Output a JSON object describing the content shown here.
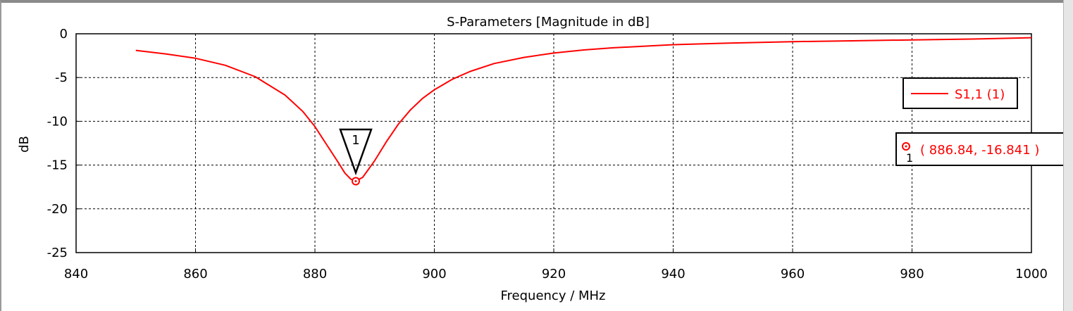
{
  "chart_data": {
    "type": "line",
    "title": "S-Parameters [Magnitude in dB]",
    "xlabel": "Frequency / MHz",
    "ylabel": "dB",
    "xlim": [
      840,
      1000
    ],
    "ylim": [
      -25,
      0
    ],
    "x_ticks": [
      840,
      860,
      880,
      900,
      920,
      940,
      960,
      980,
      1000
    ],
    "y_ticks": [
      0,
      -5,
      -10,
      -15,
      -20,
      -25
    ],
    "x_tick_labels": [
      "840",
      "860",
      "880",
      "900",
      "920",
      "940",
      "960",
      "980",
      "1000"
    ],
    "y_tick_labels": [
      "0",
      "-5",
      "-10",
      "-15",
      "-20",
      "-25"
    ],
    "grid": true,
    "legend_position": "right",
    "series": [
      {
        "name": "S1,1 (1)",
        "color": "#ff0000",
        "x": [
          850,
          855,
          860,
          865,
          870,
          875,
          878,
          880,
          882,
          884,
          885,
          886,
          886.84,
          888,
          890,
          892,
          894,
          896,
          898,
          900,
          903,
          906,
          910,
          915,
          920,
          925,
          930,
          940,
          950,
          960,
          970,
          980,
          990,
          1000
        ],
        "y": [
          -1.9,
          -2.3,
          -2.8,
          -3.6,
          -4.9,
          -7.0,
          -8.9,
          -10.6,
          -12.7,
          -14.8,
          -15.9,
          -16.6,
          -16.841,
          -16.4,
          -14.5,
          -12.3,
          -10.3,
          -8.7,
          -7.4,
          -6.4,
          -5.2,
          -4.3,
          -3.4,
          -2.7,
          -2.2,
          -1.85,
          -1.6,
          -1.25,
          -1.05,
          -0.9,
          -0.8,
          -0.7,
          -0.6,
          -0.45
        ]
      }
    ],
    "markers": [
      {
        "id": "1",
        "x": 886.84,
        "y": -16.841,
        "label": "( 886.84, -16.841 )"
      }
    ]
  }
}
